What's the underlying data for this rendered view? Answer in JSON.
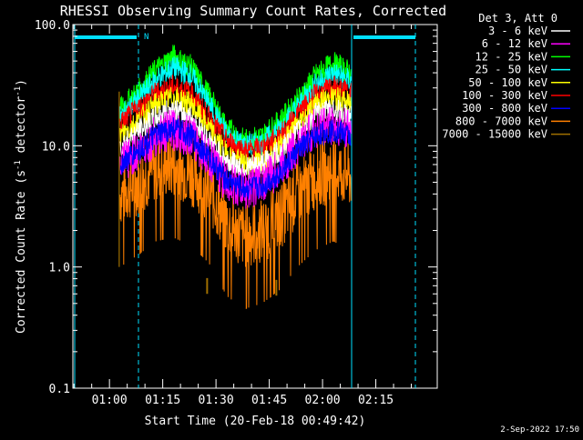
{
  "chart_data": {
    "type": "line",
    "title": "RHESSI Observing Summary Count Rates, Corrected",
    "xlabel": "Start Time (20-Feb-18 00:49:42)",
    "ylabel_main": "Corrected Count Rate (s",
    "ylabel_sup1": "-1",
    "ylabel_mid": " detector",
    "ylabel_sup2": "-1",
    "ylabel_end": ")",
    "y_scale": "log",
    "ylim": [
      0.1,
      100
    ],
    "y_ticks": [
      {
        "value": 0.1,
        "label": "0.1"
      },
      {
        "value": 1,
        "label": "1.0"
      },
      {
        "value": 10,
        "label": "10.0"
      },
      {
        "value": 100,
        "label": "100.0"
      }
    ],
    "xlim_minutes": [
      49.7,
      152.3
    ],
    "x_ticks": [
      {
        "value": 60,
        "label": "01:00"
      },
      {
        "value": 75,
        "label": "01:15"
      },
      {
        "value": 90,
        "label": "01:30"
      },
      {
        "value": 105,
        "label": "01:45"
      },
      {
        "value": 120,
        "label": "02:00"
      },
      {
        "value": 135,
        "label": "02:15"
      }
    ],
    "legend_placement": "outside-right",
    "legend_header": "Det 3, Att 0",
    "series": [
      {
        "name": "3 - 6 keV",
        "color": "#ffffff",
        "x": [
          63,
          68,
          73,
          78,
          83,
          88,
          93,
          98,
          103,
          108,
          113,
          118,
          123,
          128
        ],
        "y": [
          10,
          13,
          17,
          20,
          17,
          11,
          7.5,
          6.5,
          7,
          9,
          13,
          18,
          20,
          17
        ]
      },
      {
        "name": "6 - 12 keV",
        "color": "#ff00ff",
        "x": [
          63,
          68,
          73,
          78,
          83,
          88,
          93,
          98,
          103,
          108,
          113,
          118,
          123,
          128
        ],
        "y": [
          7,
          9,
          12,
          13.5,
          12,
          8,
          5,
          4.3,
          5,
          6.5,
          10,
          14,
          15,
          13
        ]
      },
      {
        "name": "12 - 25 keV",
        "color": "#00ff00",
        "x": [
          63,
          68,
          73,
          78,
          83,
          88,
          93,
          98,
          103,
          108,
          113,
          118,
          123,
          128
        ],
        "y": [
          20,
          28,
          42,
          55,
          45,
          26,
          14,
          11,
          12,
          16,
          24,
          38,
          48,
          40
        ]
      },
      {
        "name": "25 - 50 keV",
        "color": "#00ffff",
        "x": [
          63,
          68,
          73,
          78,
          83,
          88,
          93,
          98,
          103,
          108,
          113,
          118,
          123,
          128
        ],
        "y": [
          17,
          24,
          35,
          44,
          38,
          22,
          12.5,
          10,
          10.5,
          14,
          21,
          32,
          40,
          34
        ]
      },
      {
        "name": "50 - 100 keV",
        "color": "#ffff00",
        "x": [
          63,
          68,
          73,
          78,
          83,
          88,
          93,
          98,
          103,
          108,
          113,
          118,
          123,
          128
        ],
        "y": [
          12,
          16,
          22,
          25,
          22,
          14,
          8.5,
          7,
          7.5,
          10,
          15,
          22,
          25,
          22
        ]
      },
      {
        "name": "100 - 300 keV",
        "color": "#ff0000",
        "x": [
          63,
          68,
          73,
          78,
          83,
          88,
          93,
          98,
          103,
          108,
          113,
          118,
          123,
          128
        ],
        "y": [
          15,
          20,
          27,
          31,
          27,
          17,
          11,
          9,
          9.5,
          12,
          18,
          26,
          30,
          27
        ]
      },
      {
        "name": "300 - 800 keV",
        "color": "#0000ff",
        "x": [
          63,
          68,
          73,
          78,
          83,
          88,
          93,
          98,
          103,
          108,
          113,
          118,
          123,
          128
        ],
        "y": [
          7,
          9,
          12,
          14,
          12,
          8,
          5.2,
          4.4,
          4.6,
          6,
          9,
          12,
          13.5,
          12
        ]
      },
      {
        "name": "800 - 7000 keV",
        "color": "#ff8000",
        "x": [
          63,
          68,
          73,
          78,
          83,
          88,
          93,
          98,
          103,
          108,
          113,
          118,
          123,
          128
        ],
        "y": [
          4,
          5,
          6.5,
          7,
          6,
          4.3,
          2.3,
          1.8,
          2,
          2.6,
          4,
          5.5,
          6.5,
          5.5
        ]
      },
      {
        "name": "7000 - 15000 keV",
        "color": "#a07000",
        "x": [
          63,
          87.5,
          107
        ],
        "y": [
          1.0,
          0.6,
          0.58
        ]
      }
    ],
    "flag_label": "N",
    "flag_color": "#00e0ff",
    "grid": false,
    "timestamp": "2-Sep-2022 17:50"
  }
}
